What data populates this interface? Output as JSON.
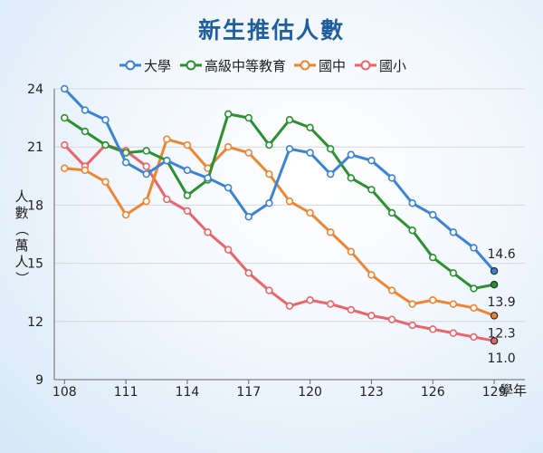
{
  "chart_data": {
    "type": "line",
    "title": "新生推估人數",
    "xlabel": "學年",
    "ylabel": "人數（萬人）",
    "x": [
      108,
      109,
      110,
      111,
      112,
      113,
      114,
      115,
      116,
      117,
      118,
      119,
      120,
      121,
      122,
      123,
      124,
      125,
      126,
      127,
      128,
      129
    ],
    "xticks": [
      108,
      111,
      114,
      117,
      120,
      123,
      126,
      129
    ],
    "xtick_labels": [
      "108",
      "111",
      "114",
      "117",
      "120",
      "123",
      "126",
      "129"
    ],
    "xlim": [
      107.5,
      130.5
    ],
    "ylim": [
      9,
      24
    ],
    "yticks": [
      9,
      12,
      15,
      18,
      21,
      24
    ],
    "grid": true,
    "legend_position": "top",
    "series": [
      {
        "name": "大學",
        "color": "#3a84d3",
        "values": [
          24.0,
          22.9,
          22.4,
          20.2,
          19.6,
          20.3,
          19.8,
          19.4,
          18.9,
          17.4,
          18.1,
          20.9,
          20.7,
          19.6,
          20.6,
          20.3,
          19.4,
          18.1,
          17.5,
          16.6,
          15.8,
          14.6
        ],
        "end_label": "14.6"
      },
      {
        "name": "高級中等教育",
        "color": "#2a9030",
        "values": [
          22.5,
          21.8,
          21.1,
          20.7,
          20.8,
          20.3,
          18.5,
          19.3,
          22.7,
          22.5,
          21.1,
          22.4,
          22.0,
          20.9,
          19.4,
          18.8,
          17.6,
          16.7,
          15.3,
          14.5,
          13.7,
          13.9
        ],
        "end_label": "13.9"
      },
      {
        "name": "國中",
        "color": "#ef8531",
        "values": [
          19.9,
          19.8,
          19.2,
          17.5,
          18.2,
          21.4,
          21.1,
          19.9,
          21.0,
          20.7,
          19.6,
          18.2,
          17.6,
          16.6,
          15.6,
          14.4,
          13.6,
          12.9,
          13.1,
          12.9,
          12.7,
          12.3
        ],
        "end_label": "12.3"
      },
      {
        "name": "國小",
        "color": "#ea6469",
        "values": [
          21.1,
          20.0,
          21.1,
          20.8,
          20.0,
          18.3,
          17.7,
          16.6,
          15.7,
          14.5,
          13.6,
          12.8,
          13.1,
          12.9,
          12.6,
          12.3,
          12.1,
          11.8,
          11.6,
          11.4,
          11.2,
          11.0
        ],
        "end_label": "11.0"
      }
    ]
  }
}
